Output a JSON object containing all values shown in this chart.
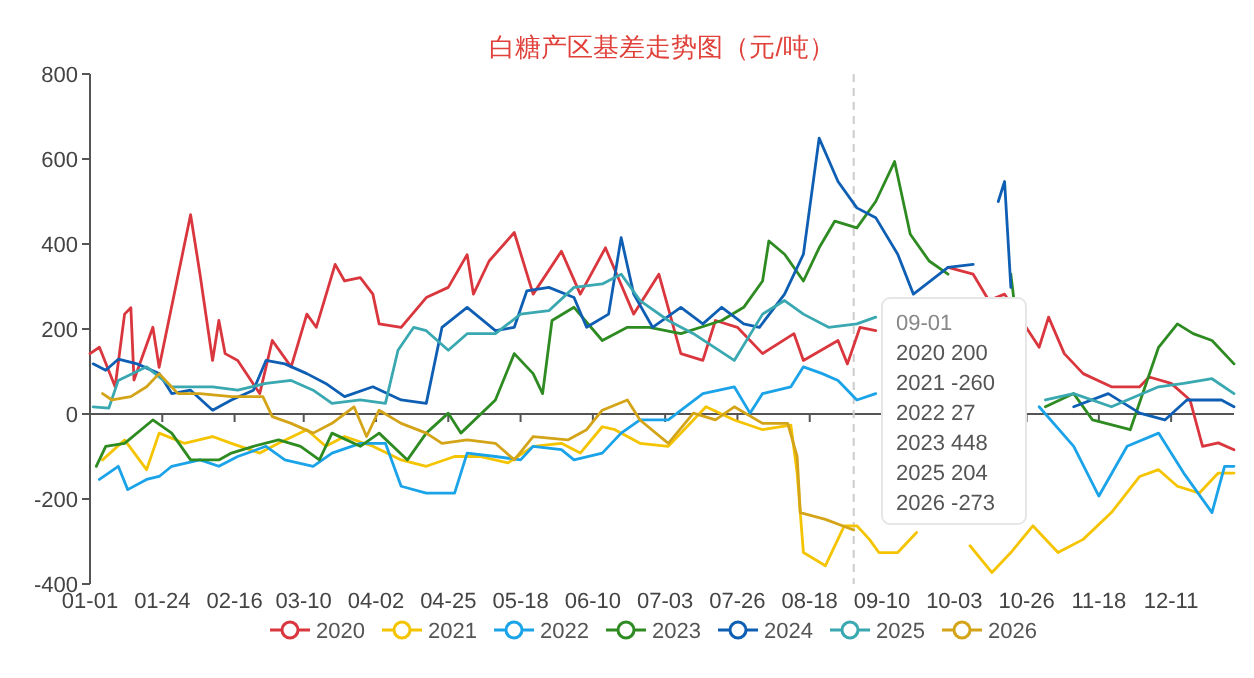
{
  "chart_data": {
    "type": "line",
    "title": "白糖产区基差走势图（元/吨）",
    "xlim": [
      "--01-01",
      "--12-31"
    ],
    "xticks": [
      {
        "value": "--01-01",
        "label": "01-01"
      },
      {
        "value": "--01-24",
        "label": "01-24"
      },
      {
        "value": "--02-16",
        "label": "02-16"
      },
      {
        "value": "--03-10",
        "label": "03-10"
      },
      {
        "value": "--04-02",
        "label": "04-02"
      },
      {
        "value": "--04-25",
        "label": "04-25"
      },
      {
        "value": "--05-18",
        "label": "05-18"
      },
      {
        "value": "--06-10",
        "label": "06-10"
      },
      {
        "value": "--07-03",
        "label": "07-03"
      },
      {
        "value": "--07-26",
        "label": "07-26"
      },
      {
        "value": "--08-18",
        "label": "08-18"
      },
      {
        "value": "--09-10",
        "label": "09-10"
      },
      {
        "value": "--10-03",
        "label": "10-03"
      },
      {
        "value": "--10-26",
        "label": "10-26"
      },
      {
        "value": "--11-18",
        "label": "11-18"
      },
      {
        "value": "--12-11",
        "label": "12-11"
      }
    ],
    "ylim": [
      -400,
      800
    ],
    "yticks": [
      -400,
      -200,
      0,
      200,
      400,
      600,
      800
    ],
    "legend": "bottom",
    "marker": "none",
    "line_style": "solid",
    "ref_lines": [
      {
        "axis": "x",
        "value": "--09-01",
        "color": "#cccccc",
        "line_style": "dashed"
      }
    ],
    "annotations": [
      "09-01",
      "2020 200",
      "2021 -260",
      "2022 27",
      "2023 448",
      "2025 204",
      "2026 -273"
    ],
    "series": [
      {
        "name": "2020",
        "color": "#d9363e",
        "x": [
          "--01-01",
          "--01-04",
          "--01-09",
          "--01-12",
          "--01-14",
          "--01-15",
          "--01-21",
          "--01-23",
          "--02-02",
          "--02-05",
          "--02-09",
          "--02-11",
          "--02-13",
          "--02-17",
          "--02-24",
          "--02-28",
          "--03-06",
          "--03-11",
          "--03-14",
          "--03-20",
          "--03-23",
          "--03-28",
          "--04-01",
          "--04-03",
          "--04-10",
          "--04-18",
          "--04-25",
          "--05-01",
          "--05-03",
          "--05-08",
          "--05-16",
          "--05-22",
          "--05-31",
          "--06-06",
          "--06-14",
          "--06-23",
          "--07-01",
          "--07-08",
          "--07-15",
          "--07-19",
          "--07-26",
          "--08-03",
          "--08-13",
          "--08-16",
          "--08-27",
          "--08-30",
          "--09-03",
          "--09-08",
          "--09-20",
          "--10-01",
          "--10-09",
          "--10-14",
          "--10-19",
          "--10-30",
          "--11-02",
          "--11-07",
          "--11-13",
          "--11-22",
          "--12-01",
          "--12-04",
          "--12-11",
          "--12-17",
          "--12-21",
          "--12-26",
          "--12-31"
        ],
        "values": [
          142,
          157,
          64,
          235,
          250,
          80,
          204,
          110,
          469,
          329,
          126,
          220,
          142,
          126,
          48,
          173,
          111,
          235,
          204,
          352,
          313,
          321,
          282,
          212,
          204,
          274,
          298,
          375,
          282,
          360,
          427,
          282,
          383,
          282,
          391,
          235,
          329,
          142,
          126,
          220,
          204,
          142,
          189,
          126,
          173,
          118,
          204,
          196,
          null,
          345,
          329,
          267,
          282,
          157,
          228,
          142,
          95,
          64,
          64,
          87,
          72,
          33,
          -76,
          -68,
          -84
        ]
      },
      {
        "name": "2021",
        "color": "#f5c400",
        "x": [
          "--01-05",
          "--01-12",
          "--01-19",
          "--01-23",
          "--01-31",
          "--02-09",
          "--02-15",
          "--02-24",
          "--03-02",
          "--03-11",
          "--03-17",
          "--03-23",
          "--04-01",
          "--04-10",
          "--04-18",
          "--04-27",
          "--05-05",
          "--05-14",
          "--05-22",
          "--05-31",
          "--06-06",
          "--06-13",
          "--06-17",
          "--06-25",
          "--07-04",
          "--07-16",
          "--07-25",
          "--08-03",
          "--08-12",
          "--08-14",
          "--08-16",
          "--08-23",
          "--08-29",
          "--09-02",
          "--09-06",
          "--09-09",
          "--09-15",
          "--09-21",
          "--09-30",
          "--10-08",
          "--10-15",
          "--10-21",
          "--10-28",
          "--11-05",
          "--11-13",
          "--11-22",
          "--12-01",
          "--12-07",
          "--12-13",
          "--12-20",
          "--12-26",
          "--12-31"
        ],
        "values": [
          -108,
          -61,
          -131,
          -45,
          -69,
          -53,
          -69,
          -92,
          -69,
          -37,
          -76,
          -53,
          -76,
          -108,
          -123,
          -100,
          -100,
          -115,
          -76,
          -69,
          -92,
          -30,
          -37,
          -69,
          -76,
          17,
          -14,
          -37,
          -26,
          -139,
          -326,
          -357,
          -263,
          -263,
          -295,
          -326,
          -326,
          -279,
          null,
          -310,
          -373,
          -326,
          -263,
          -326,
          -295,
          -232,
          -147,
          -131,
          -170,
          -186,
          -139,
          -139
        ]
      },
      {
        "name": "2022",
        "color": "#1aa3e8",
        "x": [
          "--01-04",
          "--01-10",
          "--01-13",
          "--01-19",
          "--01-23",
          "--01-27",
          "--02-05",
          "--02-11",
          "--02-17",
          "--02-26",
          "--03-04",
          "--03-13",
          "--03-19",
          "--03-28",
          "--04-05",
          "--04-10",
          "--04-18",
          "--04-27",
          "--05-01",
          "--05-10",
          "--05-18",
          "--05-22",
          "--05-31",
          "--06-04",
          "--06-13",
          "--06-19",
          "--06-25",
          "--07-04",
          "--07-15",
          "--07-25",
          "--07-30",
          "--08-03",
          "--08-12",
          "--08-16",
          "--08-22",
          "--08-27",
          "--09-02",
          "--09-08",
          "--10-03",
          "--10-30",
          "--11-10",
          "--11-18",
          "--11-27",
          "--12-07",
          "--12-15",
          "--12-24",
          "--12-28",
          "--12-31"
        ],
        "values": [
          -154,
          -123,
          -178,
          -154,
          -147,
          -123,
          -108,
          -123,
          -100,
          -76,
          -108,
          -123,
          -92,
          -69,
          -69,
          -170,
          -186,
          -186,
          -92,
          -100,
          -108,
          -76,
          -84,
          -108,
          -92,
          -45,
          -14,
          -14,
          48,
          64,
          2,
          48,
          64,
          111,
          95,
          79,
          33,
          48,
          null,
          17,
          -76,
          -193,
          -76,
          -45,
          -139,
          -232,
          -123,
          -123
        ]
      },
      {
        "name": "2023",
        "color": "#2e8b22",
        "x": [
          "--01-03",
          "--01-06",
          "--01-12",
          "--01-21",
          "--01-27",
          "--02-02",
          "--02-11",
          "--02-15",
          "--02-22",
          "--03-02",
          "--03-09",
          "--03-15",
          "--03-19",
          "--03-28",
          "--04-03",
          "--04-12",
          "--04-18",
          "--04-25",
          "--04-29",
          "--05-10",
          "--05-16",
          "--05-22",
          "--05-25",
          "--05-28",
          "--06-04",
          "--06-13",
          "--06-21",
          "--06-28",
          "--07-08",
          "--07-21",
          "--07-28",
          "--08-03",
          "--08-05",
          "--08-10",
          "--08-16",
          "--08-21",
          "--08-26",
          "--09-02",
          "--09-08",
          "--09-14",
          "--09-19",
          "--09-25",
          "--10-01",
          "--10-11",
          "--10-21",
          "--10-22",
          "--10-27",
          "--11-01",
          "--11-10",
          "--11-16",
          "--11-28",
          "--12-07",
          "--12-13",
          "--12-18",
          "--12-24",
          "--12-31"
        ],
        "values": [
          -123,
          -76,
          -69,
          -14,
          -45,
          -108,
          -108,
          -92,
          -76,
          -61,
          -76,
          -108,
          -45,
          -76,
          -45,
          -108,
          -45,
          2,
          -45,
          33,
          142,
          95,
          48,
          220,
          251,
          173,
          204,
          204,
          189,
          220,
          251,
          313,
          407,
          376,
          313,
          391,
          454,
          438,
          500,
          594,
          423,
          360,
          329,
          null,
          329,
          267,
          null,
          17,
          48,
          -14,
          -37,
          157,
          212,
          189,
          173,
          118
        ]
      },
      {
        "name": "2024",
        "color": "#0e5fb4",
        "x": [
          "--01-02",
          "--01-06",
          "--01-10",
          "--01-16",
          "--01-23",
          "--01-27",
          "--02-02",
          "--02-09",
          "--02-15",
          "--02-22",
          "--02-26",
          "--03-04",
          "--03-11",
          "--03-17",
          "--03-23",
          "--04-01",
          "--04-10",
          "--04-18",
          "--04-23",
          "--05-01",
          "--05-10",
          "--05-16",
          "--05-20",
          "--05-27",
          "--06-04",
          "--06-08",
          "--06-15",
          "--06-19",
          "--06-23",
          "--06-29",
          "--07-08",
          "--07-15",
          "--07-21",
          "--07-28",
          "--08-02",
          "--08-10",
          "--08-16",
          "--08-21",
          "--08-27",
          "--09-02",
          "--09-08",
          "--09-15",
          "--09-20",
          "--10-01",
          "--10-09",
          "--10-12",
          "--10-17",
          "--10-19",
          "--10-21",
          "--10-31",
          "--11-10",
          "--11-21",
          "--12-01",
          "--12-09",
          "--12-16",
          "--12-27",
          "--12-31"
        ],
        "values": [
          118,
          103,
          129,
          118,
          95,
          48,
          56,
          9,
          33,
          56,
          126,
          118,
          95,
          72,
          41,
          64,
          33,
          25,
          204,
          251,
          196,
          204,
          290,
          298,
          274,
          204,
          235,
          415,
          282,
          204,
          251,
          212,
          251,
          212,
          204,
          282,
          376,
          649,
          547,
          485,
          462,
          376,
          282,
          345,
          352,
          null,
          500,
          547,
          298,
          null,
          17,
          48,
          2,
          -14,
          33,
          33,
          17
        ]
      },
      {
        "name": "2025",
        "color": "#3aa8b0",
        "x": [
          "--01-02",
          "--01-07",
          "--01-10",
          "--01-19",
          "--01-27",
          "--02-09",
          "--02-17",
          "--02-26",
          "--03-06",
          "--03-13",
          "--03-19",
          "--03-28",
          "--04-05",
          "--04-09",
          "--04-14",
          "--04-18",
          "--04-25",
          "--05-01",
          "--05-10",
          "--05-18",
          "--05-27",
          "--06-04",
          "--06-13",
          "--06-19",
          "--06-25",
          "--07-04",
          "--07-12",
          "--07-25",
          "--08-03",
          "--08-10",
          "--08-16",
          "--08-24",
          "--09-02",
          "--09-08",
          "--10-08",
          "--11-01",
          "--11-10",
          "--11-22",
          "--12-07",
          "--12-15",
          "--12-24",
          "--12-31"
        ],
        "values": [
          17,
          14,
          79,
          111,
          64,
          64,
          56,
          72,
          79,
          56,
          25,
          33,
          25,
          150,
          204,
          196,
          150,
          189,
          189,
          235,
          243,
          298,
          306,
          329,
          267,
          220,
          189,
          126,
          235,
          267,
          235,
          204,
          212,
          228,
          null,
          33,
          48,
          17,
          64,
          72,
          83,
          48
        ]
      },
      {
        "name": "2026",
        "color": "#d4a418",
        "x": [
          "--01-05",
          "--01-08",
          "--01-14",
          "--01-19",
          "--01-23",
          "--01-29",
          "--02-05",
          "--02-15",
          "--02-25",
          "--02-28",
          "--03-06",
          "--03-13",
          "--03-19",
          "--03-26",
          "--03-30",
          "--04-03",
          "--04-10",
          "--04-18",
          "--04-23",
          "--05-01",
          "--05-10",
          "--05-16",
          "--05-22",
          "--06-02",
          "--06-08",
          "--06-13",
          "--06-21",
          "--06-25",
          "--07-04",
          "--07-12",
          "--07-19",
          "--07-25",
          "--08-03",
          "--08-11",
          "--08-14",
          "--08-15",
          "--08-23",
          "--09-01"
        ],
        "values": [
          48,
          33,
          41,
          64,
          95,
          48,
          48,
          41,
          41,
          -6,
          -22,
          -45,
          -22,
          17,
          -53,
          9,
          -22,
          -45,
          -69,
          -61,
          -69,
          -108,
          -53,
          -61,
          -37,
          9,
          33,
          -14,
          -69,
          2,
          -14,
          17,
          -22,
          -22,
          -100,
          -232,
          -248,
          -273
        ]
      }
    ]
  }
}
